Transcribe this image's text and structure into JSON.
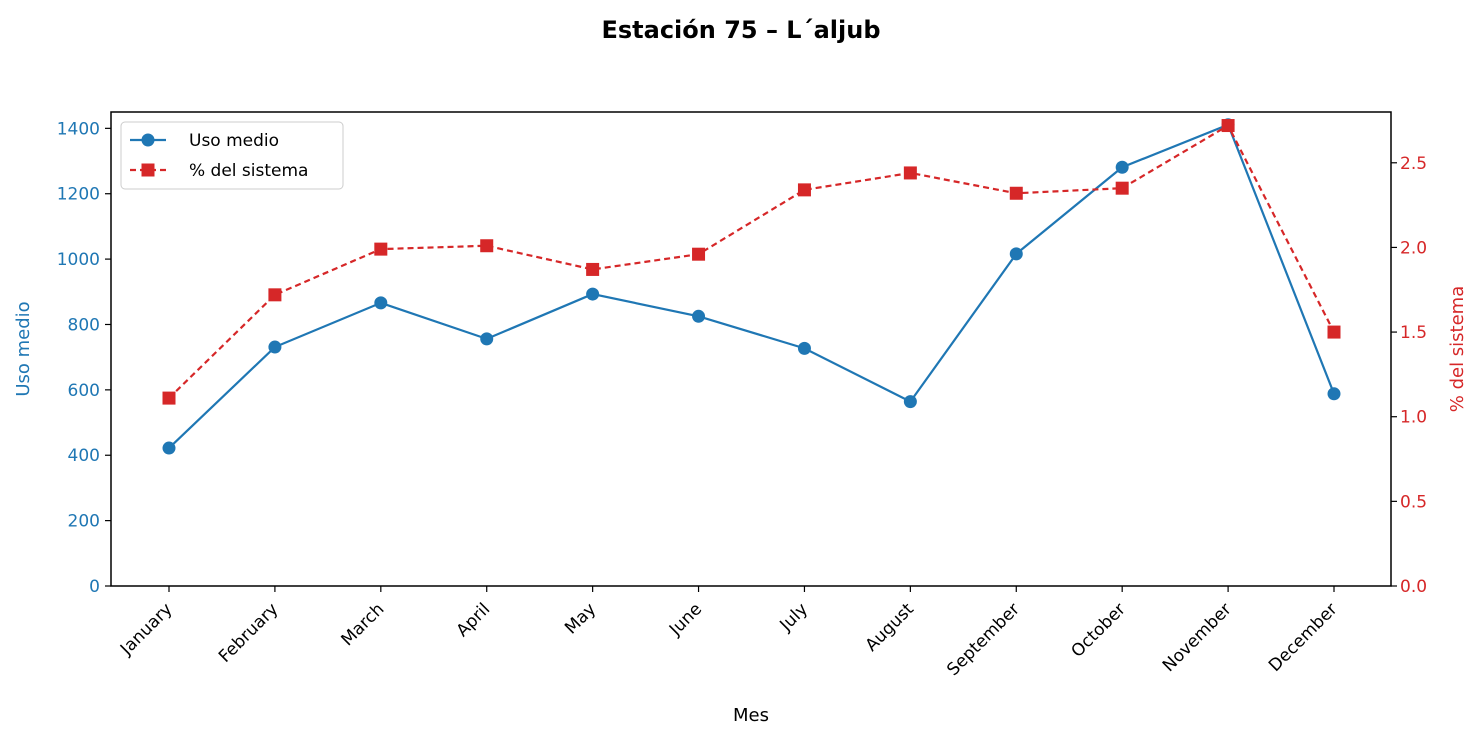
{
  "chart_data": {
    "type": "line",
    "title": "Estación 75 – L´aljub",
    "xlabel": "Mes",
    "categories": [
      "January",
      "February",
      "March",
      "April",
      "May",
      "June",
      "July",
      "August",
      "September",
      "October",
      "November",
      "December"
    ],
    "y_left": {
      "label": "Uso medio",
      "lim": [
        0,
        1450
      ],
      "ticks": [
        0,
        200,
        400,
        600,
        800,
        1000,
        1200,
        1400
      ],
      "color": "#1f77b4"
    },
    "y_right": {
      "label": "% del sistema",
      "lim": [
        0,
        2.8
      ],
      "ticks": [
        "0.0",
        "0.5",
        "1.0",
        "1.5",
        "2.0",
        "2.5"
      ],
      "color": "#d62728"
    },
    "series": [
      {
        "name": "Uso medio",
        "axis": "left",
        "style": "solid",
        "marker": "circle",
        "color": "#1f77b4",
        "values": [
          422,
          731,
          866,
          756,
          893,
          825,
          727,
          564,
          1016,
          1281,
          1411,
          588
        ]
      },
      {
        "name": "% del sistema",
        "axis": "right",
        "style": "dashed",
        "marker": "square",
        "color": "#d62728",
        "values": [
          1.11,
          1.72,
          1.99,
          2.01,
          1.87,
          1.96,
          2.34,
          2.44,
          2.32,
          2.35,
          2.72,
          1.5
        ]
      }
    ],
    "legend": "top-left",
    "grid": false
  }
}
